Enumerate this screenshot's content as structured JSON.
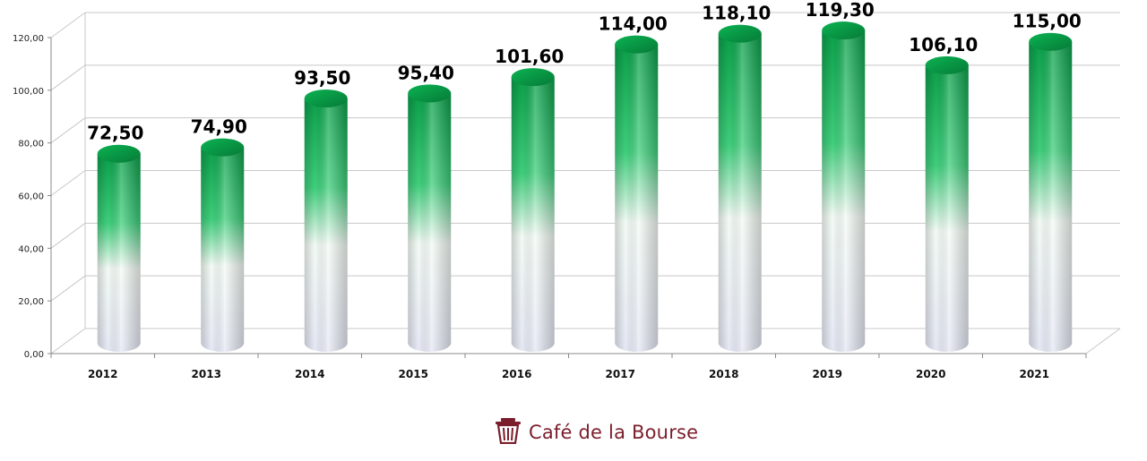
{
  "chart_data": {
    "type": "bar",
    "categories": [
      "2012",
      "2013",
      "2014",
      "2015",
      "2016",
      "2017",
      "2018",
      "2019",
      "2020",
      "2021"
    ],
    "values": [
      72.5,
      74.9,
      93.5,
      95.4,
      101.6,
      114.0,
      118.1,
      119.3,
      106.1,
      115.0
    ],
    "value_labels": [
      "72,50",
      "74,90",
      "93,50",
      "95,40",
      "101,60",
      "114,00",
      "118,10",
      "119,30",
      "106,10",
      "115,00"
    ],
    "y_ticks": [
      "0,00",
      "20,00",
      "40,00",
      "60,00",
      "80,00",
      "100,00",
      "120,00"
    ],
    "ylim": [
      0,
      120
    ],
    "grid": true,
    "style": "3d-cylinder",
    "colors": {
      "top": "#0aa04a",
      "bottom": "#e9ecf5",
      "grid": "#c8c8c8"
    }
  },
  "branding": {
    "text": "Café de la Bourse",
    "icon": "trash-bin-icon",
    "color": "#7b1e2b"
  }
}
